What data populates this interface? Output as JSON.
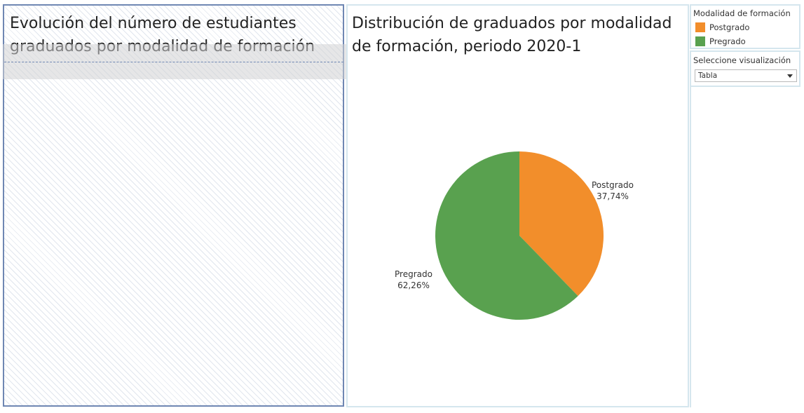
{
  "left_panel": {
    "title": "Evolución del número de estudiantes graduados por modalidad de formación"
  },
  "right_panel": {
    "title": "Distribución de graduados por modalidad de formación, periodo 2020-1"
  },
  "legend": {
    "title": "Modalidad de formación",
    "items": [
      {
        "label": "Postgrado",
        "color": "#f28e2b",
        "icon": "orange-square"
      },
      {
        "label": "Pregrado",
        "color": "#59a14f",
        "icon": "green-square"
      }
    ]
  },
  "parameter": {
    "title": "Seleccione visualización",
    "selected": "Tabla",
    "icon": "chevron-down-icon"
  },
  "chart_data": {
    "type": "pie",
    "title": "Distribución de graduados por modalidad de formación, periodo 2020-1",
    "slices": [
      {
        "label": "Postgrado",
        "value": 37.74,
        "value_text": "37,74%",
        "color": "#f28e2b"
      },
      {
        "label": "Pregrado",
        "value": 62.26,
        "value_text": "62,26%",
        "color": "#59a14f"
      }
    ]
  }
}
